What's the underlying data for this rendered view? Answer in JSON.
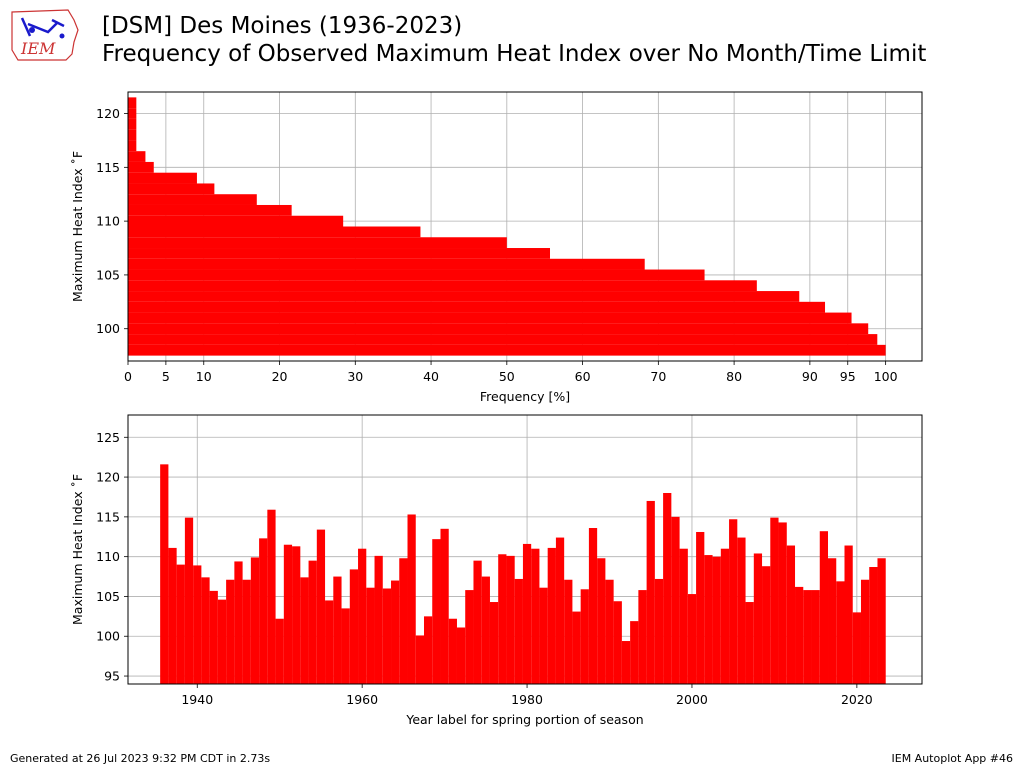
{
  "header": {
    "logo_text": "IEM",
    "title_line1": "[DSM] Des Moines (1936-2023)",
    "title_line2": "Frequency of Observed Maximum Heat Index over No Month/Time Limit"
  },
  "footer": {
    "generated": "Generated at 26 Jul 2023 9:32 PM CDT in 2.73s",
    "app": "IEM Autoplot App #46"
  },
  "colors": {
    "bar": "#ff0000",
    "grid": "#b0b0b0"
  },
  "chart_data": [
    {
      "type": "bar",
      "orientation": "horizontal",
      "xlabel": "Frequency [%]",
      "ylabel": "Maximum Heat Index $^\\circ$F",
      "ylabel_display": "Maximum Heat Index ˚F",
      "xlim": [
        0,
        104.8
      ],
      "ylim": [
        97,
        122
      ],
      "xticks": [
        0,
        5,
        10,
        20,
        30,
        40,
        50,
        60,
        70,
        80,
        90,
        95,
        100
      ],
      "yticks": [
        100,
        105,
        110,
        115,
        120
      ],
      "grid": true,
      "categories": [
        98,
        99,
        100,
        101,
        102,
        103,
        104,
        105,
        106,
        107,
        108,
        109,
        110,
        111,
        112,
        113,
        114,
        115,
        116,
        117,
        118,
        119,
        120,
        121
      ],
      "values": [
        100,
        98.9,
        97.7,
        95.5,
        92.0,
        88.6,
        83.0,
        76.1,
        68.2,
        55.7,
        50.0,
        38.6,
        28.4,
        21.6,
        17.0,
        11.4,
        9.1,
        3.4,
        2.3,
        1.1,
        1.1,
        1.1,
        1.1,
        1.1
      ]
    },
    {
      "type": "bar",
      "xlabel": "Year label for spring portion of season",
      "ylabel": "Maximum Heat Index $^\\circ$F",
      "ylabel_display": "Maximum Heat Index ˚F",
      "xlim": [
        1931.6,
        2027.9
      ],
      "ylim": [
        94,
        127.8
      ],
      "xticks": [
        1940,
        1960,
        1980,
        2000,
        2020
      ],
      "yticks": [
        95,
        100,
        105,
        110,
        115,
        120,
        125
      ],
      "grid": true,
      "x": [
        1936,
        1937,
        1938,
        1939,
        1940,
        1941,
        1942,
        1943,
        1944,
        1945,
        1946,
        1947,
        1948,
        1949,
        1950,
        1951,
        1952,
        1953,
        1954,
        1955,
        1956,
        1957,
        1958,
        1959,
        1960,
        1961,
        1962,
        1963,
        1964,
        1965,
        1966,
        1967,
        1968,
        1969,
        1970,
        1971,
        1972,
        1973,
        1974,
        1975,
        1976,
        1977,
        1978,
        1979,
        1980,
        1981,
        1982,
        1983,
        1984,
        1985,
        1986,
        1987,
        1988,
        1989,
        1990,
        1991,
        1992,
        1993,
        1994,
        1995,
        1996,
        1997,
        1998,
        1999,
        2000,
        2001,
        2002,
        2003,
        2004,
        2005,
        2006,
        2007,
        2008,
        2009,
        2010,
        2011,
        2012,
        2013,
        2014,
        2015,
        2016,
        2017,
        2018,
        2019,
        2020,
        2021,
        2022,
        2023
      ],
      "values": [
        121.6,
        111.1,
        109.0,
        114.9,
        108.9,
        107.4,
        105.7,
        104.6,
        107.1,
        109.4,
        107.1,
        109.9,
        112.3,
        115.9,
        102.2,
        111.5,
        111.3,
        107.4,
        109.5,
        113.4,
        104.5,
        107.5,
        103.5,
        108.4,
        111.0,
        106.1,
        110.1,
        106.0,
        107.0,
        109.8,
        115.3,
        100.1,
        102.5,
        112.2,
        113.5,
        102.2,
        101.1,
        105.8,
        109.5,
        107.5,
        104.3,
        110.3,
        110.1,
        107.2,
        111.6,
        111.0,
        106.1,
        111.1,
        112.4,
        107.1,
        103.1,
        105.9,
        113.6,
        109.8,
        107.1,
        104.4,
        99.4,
        101.9,
        105.8,
        117.0,
        107.2,
        118.0,
        115.0,
        111.0,
        105.3,
        113.1,
        110.2,
        110.0,
        111.0,
        114.7,
        112.4,
        104.3,
        110.4,
        108.8,
        114.9,
        114.3,
        111.4,
        106.2,
        105.8,
        105.8,
        113.2,
        109.8,
        106.9,
        111.4,
        103.0,
        107.1,
        108.7,
        109.8
      ]
    }
  ]
}
